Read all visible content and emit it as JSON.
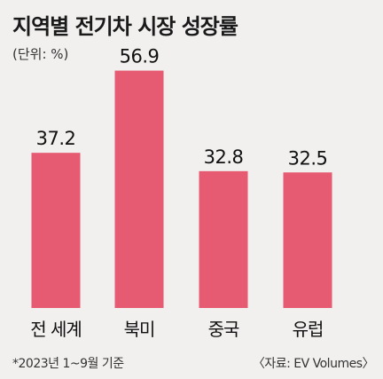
{
  "title": "지역별 전기차 시장 성장률",
  "unit_label": "(단위: %)",
  "footnote": "*2023년 1~9월 기준",
  "source": "〈자료: EV Volumes〉",
  "colors": {
    "bar": "#e65a72",
    "background": "#f1f0ef"
  },
  "chart_data": {
    "type": "bar",
    "title": "지역별 전기차 시장 성장률",
    "ylabel": "",
    "xlabel": "",
    "categories": [
      "전 세계",
      "북미",
      "중국",
      "유럽"
    ],
    "values": [
      37.2,
      56.9,
      32.8,
      32.5
    ],
    "value_labels": [
      "37.2",
      "56.9",
      "32.8",
      "32.5"
    ],
    "ylim": [
      0,
      60
    ],
    "grid": false,
    "legend": "none"
  }
}
